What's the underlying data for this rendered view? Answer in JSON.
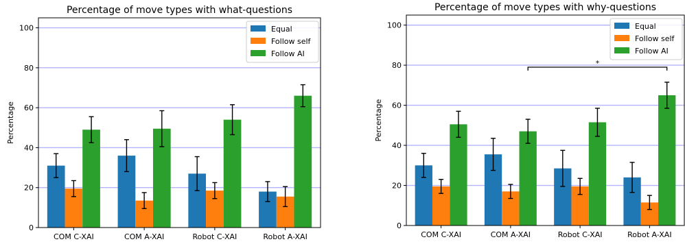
{
  "chart_data": [
    {
      "type": "bar",
      "title": "Percentage of move types with what-questions",
      "ylabel": "Percentage",
      "xlabel": "",
      "ylim": [
        0,
        105
      ],
      "yticks": [
        0,
        20,
        40,
        60,
        80,
        100
      ],
      "grid": true,
      "legend_position": "top-right",
      "categories": [
        "COM C-XAI",
        "COM A-XAI",
        "Robot C-XAI",
        "Robot A-XAI"
      ],
      "series": [
        {
          "name": "Equal",
          "color": "#1f77b4",
          "values": [
            31,
            36,
            27,
            18
          ],
          "errors": [
            6,
            8,
            8.5,
            5
          ]
        },
        {
          "name": "Follow self",
          "color": "#ff7f0e",
          "values": [
            19.5,
            13.5,
            18.5,
            15.5
          ],
          "errors": [
            4,
            4,
            4,
            5
          ]
        },
        {
          "name": "Follow AI",
          "color": "#2ca02c",
          "values": [
            49,
            49.5,
            54,
            66
          ],
          "errors": [
            6.5,
            9,
            7.5,
            5.5
          ]
        }
      ],
      "annotations": []
    },
    {
      "type": "bar",
      "title": "Percentage of move types with why-questions",
      "ylabel": "Percentage",
      "xlabel": "",
      "ylim": [
        0,
        105
      ],
      "yticks": [
        0,
        20,
        40,
        60,
        80,
        100
      ],
      "grid": true,
      "legend_position": "top-right",
      "categories": [
        "COM C-XAI",
        "COM A-XAI",
        "Robot C-XAI",
        "Robot A-XAI"
      ],
      "series": [
        {
          "name": "Equal",
          "color": "#1f77b4",
          "values": [
            30,
            35.5,
            28.5,
            24
          ],
          "errors": [
            6,
            8,
            9,
            7.5
          ]
        },
        {
          "name": "Follow self",
          "color": "#ff7f0e",
          "values": [
            19.5,
            17,
            19.5,
            11.5
          ],
          "errors": [
            3.5,
            3.5,
            4,
            3.5
          ]
        },
        {
          "name": "Follow AI",
          "color": "#2ca02c",
          "values": [
            50.5,
            47,
            51.5,
            65
          ],
          "errors": [
            6.5,
            6,
            7,
            6.5
          ]
        }
      ],
      "annotations": [
        {
          "label": "*",
          "from_category": "COM A-XAI",
          "to_category": "Robot A-XAI",
          "series": "Follow AI",
          "y": 79
        }
      ]
    }
  ]
}
